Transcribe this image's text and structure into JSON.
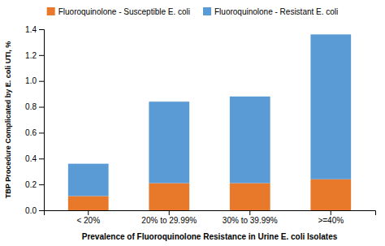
{
  "chart_data": {
    "type": "bar",
    "stacked": true,
    "x_label": "Prevalence of Fluoroquinolone Resistance in Urine E. coli Isolates",
    "y_label": "TBP Procedure Complicated by E. coli UTI, %",
    "categories": [
      "< 20%",
      "20% to 29.99%",
      "30% to 39.99%",
      ">=40%"
    ],
    "series": [
      {
        "name": "Fluoroquinolone - Susceptible E. coli",
        "color": "#E8782A",
        "values": [
          0.11,
          0.21,
          0.21,
          0.24
        ]
      },
      {
        "name": "Fluoroquinolone - Resistant E. coli",
        "color": "#5B9BD5",
        "values": [
          0.25,
          0.63,
          0.67,
          1.12
        ]
      }
    ],
    "ylim": [
      0.0,
      1.4
    ],
    "yticks": [
      {
        "value": 0.0,
        "label": "0.0"
      },
      0.2,
      0.4,
      0.6,
      0.8,
      {
        "value": 1.0,
        "label": "1.0"
      },
      1.2,
      1.4
    ],
    "grid": false,
    "legend": "top"
  }
}
